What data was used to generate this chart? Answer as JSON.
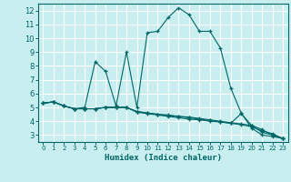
{
  "title": "",
  "xlabel": "Humidex (Indice chaleur)",
  "bg_color": "#c8eef0",
  "line_color": "#006666",
  "grid_color": "#ffffff",
  "xlim": [
    -0.5,
    23.5
  ],
  "ylim": [
    2.5,
    12.5
  ],
  "xticks": [
    0,
    1,
    2,
    3,
    4,
    5,
    6,
    7,
    8,
    9,
    10,
    11,
    12,
    13,
    14,
    15,
    16,
    17,
    18,
    19,
    20,
    21,
    22,
    23
  ],
  "yticks": [
    3,
    4,
    5,
    6,
    7,
    8,
    9,
    10,
    11,
    12
  ],
  "series": [
    {
      "x": [
        0,
        1,
        2,
        3,
        4,
        5,
        6,
        7,
        8,
        9,
        10,
        11,
        12,
        13,
        14,
        15,
        16,
        17,
        18,
        19,
        20,
        21,
        22,
        23
      ],
      "y": [
        5.3,
        5.4,
        5.1,
        4.9,
        5.0,
        8.3,
        7.6,
        5.1,
        9.0,
        5.0,
        10.4,
        10.5,
        11.5,
        12.2,
        11.7,
        10.5,
        10.5,
        9.3,
        6.4,
        4.6,
        3.5,
        3.0,
        2.9,
        2.75
      ]
    },
    {
      "x": [
        0,
        1,
        2,
        3,
        4,
        5,
        6,
        7,
        8,
        9,
        10,
        11,
        12,
        13,
        14,
        15,
        16,
        17,
        18,
        19,
        20,
        21,
        22,
        23
      ],
      "y": [
        5.3,
        5.4,
        5.1,
        4.9,
        4.9,
        4.9,
        5.0,
        5.0,
        5.0,
        4.65,
        4.55,
        4.45,
        4.35,
        4.25,
        4.15,
        4.1,
        4.0,
        3.95,
        3.85,
        3.75,
        3.6,
        3.3,
        3.1,
        2.75
      ]
    },
    {
      "x": [
        0,
        1,
        2,
        3,
        4,
        5,
        6,
        7,
        8,
        9,
        10,
        11,
        12,
        13,
        14,
        15,
        16,
        17,
        18,
        19,
        20,
        21,
        22,
        23
      ],
      "y": [
        5.3,
        5.4,
        5.1,
        4.9,
        4.9,
        4.9,
        5.0,
        5.0,
        5.0,
        4.7,
        4.6,
        4.5,
        4.45,
        4.35,
        4.25,
        4.15,
        4.05,
        3.95,
        3.85,
        4.55,
        3.7,
        3.2,
        3.0,
        2.75
      ]
    },
    {
      "x": [
        0,
        1,
        2,
        3,
        4,
        5,
        6,
        7,
        8,
        9,
        10,
        11,
        12,
        13,
        14,
        15,
        16,
        17,
        18,
        19,
        20,
        21,
        22,
        23
      ],
      "y": [
        5.3,
        5.4,
        5.1,
        4.9,
        4.9,
        4.9,
        5.0,
        5.0,
        5.0,
        4.7,
        4.6,
        4.5,
        4.4,
        4.35,
        4.3,
        4.2,
        4.1,
        4.0,
        3.9,
        3.8,
        3.7,
        3.4,
        3.0,
        2.75
      ]
    }
  ]
}
